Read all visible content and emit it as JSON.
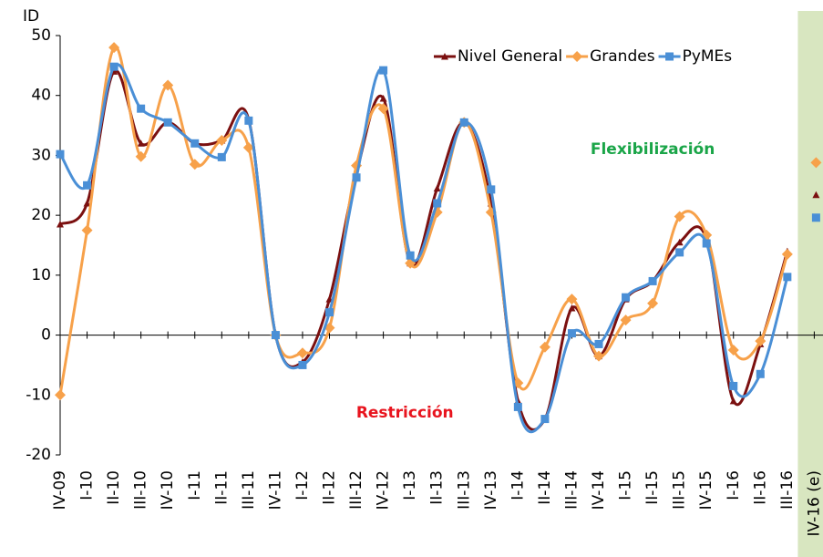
{
  "chart_data": {
    "type": "line",
    "y_label": "ID",
    "categories": [
      "IV-09",
      "I-10",
      "II-10",
      "III-10",
      "IV-10",
      "I-11",
      "II-11",
      "III-11",
      "IV-11",
      "I-12",
      "II-12",
      "III-12",
      "IV-12",
      "I-13",
      "II-13",
      "III-13",
      "IV-13",
      "I-14",
      "II-14",
      "III-14",
      "IV-14",
      "I-15",
      "II-15",
      "III-15",
      "IV-15",
      "I-16",
      "II-16",
      "III-16",
      "IV-16 (e)"
    ],
    "series": [
      {
        "name": "Nivel General",
        "color": "#7b1010",
        "marker": "triangle",
        "values": [
          18.5,
          22,
          44,
          32,
          35.5,
          32,
          32.5,
          36,
          0,
          -4.5,
          6,
          27,
          39.5,
          12,
          24.5,
          35.5,
          22,
          -11,
          -14,
          4.5,
          -3.5,
          6,
          9,
          15.5,
          16,
          -11,
          -1.5,
          14,
          23.4
        ]
      },
      {
        "name": "Grandes",
        "color": "#f7a14a",
        "marker": "diamond",
        "values": [
          -10,
          17.5,
          48,
          29.8,
          41.7,
          28.5,
          32.5,
          31.3,
          0,
          -3,
          1.2,
          28.3,
          37.8,
          12,
          20.5,
          35.5,
          20.5,
          -8,
          -2,
          6,
          -3.5,
          2.5,
          5.3,
          19.8,
          16.7,
          -2.5,
          -1,
          13.5,
          28.8
        ]
      },
      {
        "name": "PyMEs",
        "color": "#4a8fd6",
        "marker": "square",
        "values": [
          30.2,
          25,
          44.8,
          37.8,
          35.5,
          32,
          29.7,
          35.8,
          0,
          -5,
          3.8,
          26.3,
          44.2,
          13.3,
          22,
          35.5,
          24.3,
          -12,
          -14,
          0.3,
          -1.5,
          6.3,
          9,
          13.8,
          15.3,
          -8.5,
          -6.5,
          9.7,
          19.6
        ]
      }
    ],
    "ylim": [
      -20,
      50
    ],
    "yticks": [
      -20,
      -10,
      0,
      10,
      20,
      30,
      40,
      50
    ],
    "shade_last": true,
    "shade_color": "#d8e6c0",
    "annotations": [
      {
        "text": "Flexibilización",
        "color": "#1aa548",
        "at": [
          22,
          31
        ]
      },
      {
        "text": "Restricción",
        "color": "#e8141e",
        "at": [
          12.8,
          -13
        ]
      }
    ],
    "legend": "top-right"
  }
}
